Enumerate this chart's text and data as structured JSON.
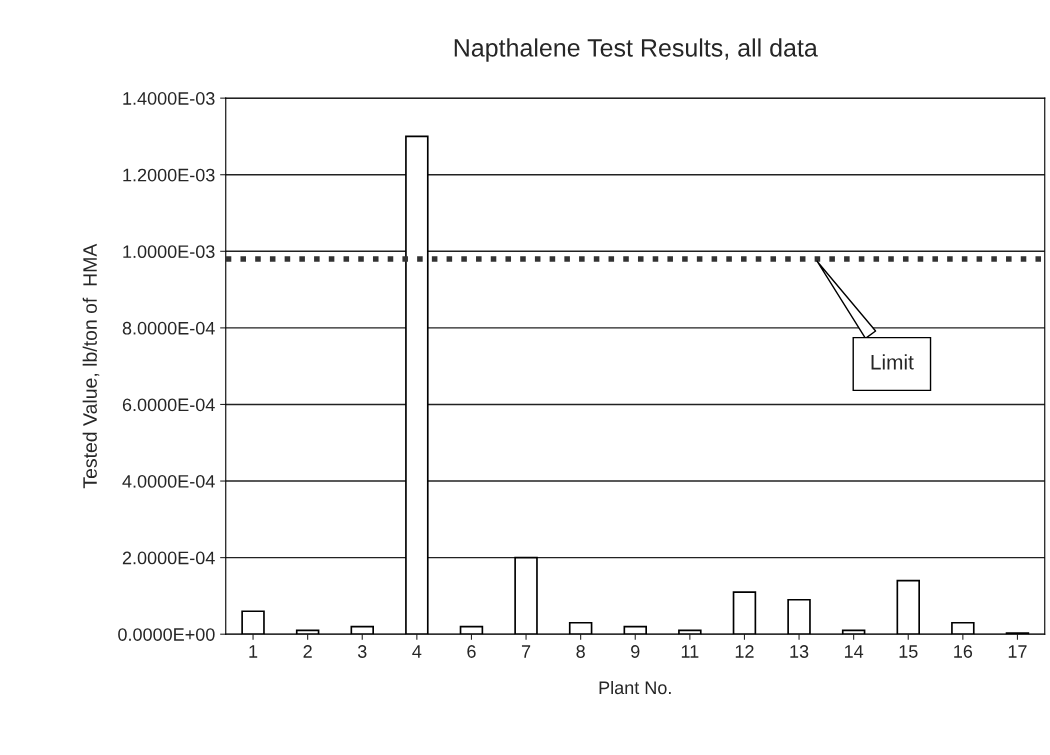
{
  "chart_data": {
    "type": "bar",
    "title": "Napthalene Test Results, all data",
    "xlabel": "Plant No.",
    "ylabel": "Tested Value, lb/ton of  HMA",
    "categories": [
      "1",
      "2",
      "3",
      "4",
      "6",
      "7",
      "8",
      "9",
      "11",
      "12",
      "13",
      "14",
      "15",
      "16",
      "17"
    ],
    "values": [
      6e-05,
      1e-05,
      2e-05,
      0.0013,
      2e-05,
      0.0002,
      3e-05,
      2e-05,
      1e-05,
      0.00011,
      9e-05,
      1e-05,
      0.00014,
      3e-05,
      3e-06
    ],
    "color": "#ffffff",
    "ylim": [
      0,
      0.0014
    ],
    "yticks": [
      {
        "value": 0,
        "label": "0.0000E+00"
      },
      {
        "value": 0.0002,
        "label": "2.0000E-04"
      },
      {
        "value": 0.0004,
        "label": "4.0000E-04"
      },
      {
        "value": 0.0006,
        "label": "6.0000E-04"
      },
      {
        "value": 0.0008,
        "label": "8.0000E-04"
      },
      {
        "value": 0.001,
        "label": "1.0000E-03"
      },
      {
        "value": 0.0012,
        "label": "1.2000E-03"
      },
      {
        "value": 0.0014,
        "label": "1.4000E-03"
      }
    ],
    "ref_lines": [
      {
        "axis": "y",
        "value": 0.00098,
        "label": "Limit",
        "line_style": "dotted",
        "color": "#333333"
      }
    ],
    "grid": "y",
    "legend": false
  }
}
